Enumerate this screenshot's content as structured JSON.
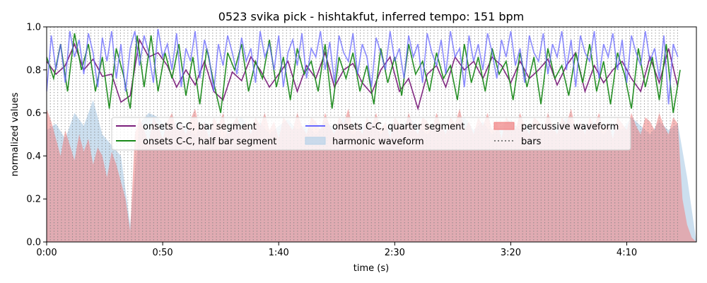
{
  "chart_data": {
    "type": "area",
    "title": "0523 svika pick - hishtakfut, inferred tempo: 151 bpm",
    "xlabel": "time (s)",
    "ylabel": "normalized values",
    "xlim": [
      0,
      280
    ],
    "ylim": [
      0,
      1.0
    ],
    "x_ticks": [
      0,
      50,
      100,
      150,
      200,
      250
    ],
    "x_tick_labels": [
      "0:00",
      "0:50",
      "1:40",
      "2:30",
      "3:20",
      "4:10"
    ],
    "y_ticks": [
      0,
      0.2,
      0.4,
      0.6,
      0.8,
      1.0
    ],
    "y_tick_labels": [
      "0.0",
      "0.2",
      "0.4",
      "0.6",
      "0.8",
      "1.0"
    ],
    "grid": false,
    "legend_position": "center",
    "tempo_bpm": 151,
    "bar_lines": {
      "start": 0,
      "end": 272,
      "interval_s": 1.59,
      "style": "dotted",
      "color": "#808080"
    },
    "colors": {
      "bar_segment": "#7b1f7b",
      "half_bar_segment": "#1a8a1a",
      "quarter_segment": "#6666ff",
      "harmonic_waveform": "#b7d2e8",
      "percussive_waveform": "#f08080",
      "bars": "#808080"
    },
    "series": [
      {
        "name": "onsets C-C, bar segment",
        "kind": "line",
        "color": "#7b1f7b",
        "x": [
          0,
          4,
          8,
          12,
          16,
          20,
          24,
          28,
          32,
          36,
          40,
          44,
          48,
          52,
          56,
          60,
          64,
          68,
          72,
          76,
          80,
          84,
          88,
          92,
          96,
          100,
          104,
          108,
          112,
          116,
          120,
          124,
          128,
          132,
          136,
          140,
          144,
          148,
          152,
          156,
          160,
          164,
          168,
          172,
          176,
          180,
          184,
          188,
          192,
          196,
          200,
          204,
          208,
          212,
          216,
          220,
          224,
          228,
          232,
          236,
          240,
          244,
          248,
          252,
          256,
          260,
          264,
          268,
          272
        ],
        "y": [
          0.84,
          0.78,
          0.82,
          0.92,
          0.8,
          0.85,
          0.77,
          0.78,
          0.65,
          0.68,
          0.94,
          0.86,
          0.88,
          0.82,
          0.72,
          0.8,
          0.73,
          0.84,
          0.7,
          0.66,
          0.79,
          0.75,
          0.86,
          0.8,
          0.72,
          0.78,
          0.84,
          0.7,
          0.82,
          0.76,
          0.88,
          0.72,
          0.8,
          0.83,
          0.74,
          0.69,
          0.8,
          0.86,
          0.7,
          0.76,
          0.62,
          0.78,
          0.82,
          0.72,
          0.86,
          0.8,
          0.84,
          0.76,
          0.86,
          0.82,
          0.74,
          0.84,
          0.76,
          0.8,
          0.85,
          0.73,
          0.82,
          0.88,
          0.7,
          0.82,
          0.74,
          0.8,
          0.84,
          0.76,
          0.7,
          0.86,
          0.74,
          0.9,
          0.72
        ]
      },
      {
        "name": "onsets C-C, half bar segment",
        "kind": "line",
        "color": "#1a8a1a",
        "x": [
          0,
          3,
          6,
          9,
          12,
          15,
          18,
          21,
          24,
          27,
          30,
          33,
          36,
          39,
          42,
          45,
          48,
          51,
          54,
          57,
          60,
          63,
          66,
          69,
          72,
          75,
          78,
          81,
          84,
          87,
          90,
          93,
          96,
          99,
          102,
          105,
          108,
          111,
          114,
          117,
          120,
          123,
          126,
          129,
          132,
          135,
          138,
          141,
          144,
          147,
          150,
          153,
          156,
          159,
          162,
          165,
          168,
          171,
          174,
          177,
          180,
          183,
          186,
          189,
          192,
          195,
          198,
          201,
          204,
          207,
          210,
          213,
          216,
          219,
          222,
          225,
          228,
          231,
          234,
          237,
          240,
          243,
          246,
          249,
          252,
          255,
          258,
          261,
          264,
          267,
          270,
          273
        ],
        "y": [
          0.86,
          0.76,
          0.92,
          0.7,
          0.97,
          0.8,
          0.92,
          0.7,
          0.86,
          0.62,
          0.9,
          0.78,
          0.62,
          0.96,
          0.72,
          0.96,
          0.7,
          0.88,
          0.76,
          0.92,
          0.68,
          0.86,
          0.64,
          0.9,
          0.74,
          0.6,
          0.88,
          0.8,
          0.92,
          0.7,
          0.84,
          0.76,
          0.94,
          0.72,
          0.86,
          0.66,
          0.9,
          0.78,
          0.84,
          0.7,
          0.92,
          0.62,
          0.86,
          0.76,
          0.88,
          0.7,
          0.82,
          0.64,
          0.9,
          0.74,
          0.86,
          0.68,
          0.92,
          0.78,
          0.84,
          0.7,
          0.88,
          0.76,
          0.82,
          0.66,
          0.92,
          0.74,
          0.86,
          0.7,
          0.9,
          0.78,
          0.84,
          0.66,
          0.88,
          0.72,
          0.86,
          0.64,
          0.9,
          0.76,
          0.82,
          0.68,
          0.88,
          0.74,
          0.92,
          0.7,
          0.84,
          0.64,
          0.88,
          0.78,
          0.62,
          0.9,
          0.72,
          0.86,
          0.66,
          0.92,
          0.6,
          0.8
        ]
      },
      {
        "name": "onsets C-C, quarter segment",
        "kind": "line",
        "color": "#6666ff",
        "x": [
          0,
          2,
          4,
          6,
          8,
          10,
          12,
          14,
          16,
          18,
          20,
          22,
          24,
          26,
          28,
          30,
          32,
          34,
          36,
          38,
          40,
          42,
          44,
          46,
          48,
          50,
          52,
          54,
          56,
          58,
          60,
          62,
          64,
          66,
          68,
          70,
          72,
          74,
          76,
          78,
          80,
          82,
          84,
          86,
          88,
          90,
          92,
          94,
          96,
          98,
          100,
          102,
          104,
          106,
          108,
          110,
          112,
          114,
          116,
          118,
          120,
          122,
          124,
          126,
          128,
          130,
          132,
          134,
          136,
          138,
          140,
          142,
          144,
          146,
          148,
          150,
          152,
          154,
          156,
          158,
          160,
          162,
          164,
          166,
          168,
          170,
          172,
          174,
          176,
          178,
          180,
          182,
          184,
          186,
          188,
          190,
          192,
          194,
          196,
          198,
          200,
          202,
          204,
          206,
          208,
          210,
          212,
          214,
          216,
          218,
          220,
          222,
          224,
          226,
          228,
          230,
          232,
          234,
          236,
          238,
          240,
          242,
          244,
          246,
          248,
          250,
          252,
          254,
          256,
          258,
          260,
          262,
          264,
          266,
          268,
          270,
          272
        ],
        "y": [
          0.7,
          0.96,
          0.8,
          0.92,
          0.74,
          0.98,
          0.86,
          0.94,
          0.78,
          0.97,
          0.88,
          0.72,
          0.95,
          0.84,
          0.98,
          0.76,
          0.92,
          0.7,
          0.9,
          0.98,
          0.82,
          0.96,
          0.88,
          0.74,
          0.99,
          0.86,
          0.92,
          0.8,
          0.97,
          0.72,
          0.9,
          0.84,
          0.98,
          0.76,
          0.94,
          0.86,
          0.7,
          0.92,
          0.82,
          0.96,
          0.88,
          0.78,
          0.95,
          0.84,
          0.9,
          0.74,
          0.98,
          0.86,
          0.92,
          0.8,
          0.96,
          0.72,
          0.88,
          0.94,
          0.82,
          0.97,
          0.76,
          0.9,
          0.86,
          0.98,
          0.8,
          0.93,
          0.74,
          0.96,
          0.88,
          0.84,
          0.97,
          0.78,
          0.92,
          0.86,
          0.72,
          0.95,
          0.88,
          0.8,
          0.98,
          0.84,
          0.9,
          0.76,
          0.96,
          0.86,
          0.92,
          0.74,
          0.97,
          0.88,
          0.82,
          0.94,
          0.78,
          0.98,
          0.86,
          0.9,
          0.72,
          0.96,
          0.84,
          0.92,
          0.8,
          0.97,
          0.88,
          0.76,
          0.94,
          0.86,
          0.98,
          0.82,
          0.9,
          0.74,
          0.96,
          0.88,
          0.84,
          0.97,
          0.78,
          0.92,
          0.86,
          0.98,
          0.8,
          0.94,
          0.72,
          0.96,
          0.88,
          0.84,
          0.98,
          0.76,
          0.92,
          0.86,
          0.97,
          0.8,
          0.94,
          0.74,
          0.96,
          0.88,
          0.82,
          0.98,
          0.84,
          0.9,
          0.76,
          0.96,
          0.64,
          0.92,
          0.86
        ]
      },
      {
        "name": "harmonic waveform",
        "kind": "area",
        "color": "#b7d2e8",
        "x": [
          0,
          4,
          8,
          12,
          16,
          20,
          24,
          28,
          32,
          36,
          40,
          44,
          48,
          52,
          56,
          60,
          64,
          68,
          72,
          76,
          80,
          84,
          88,
          92,
          96,
          100,
          104,
          108,
          112,
          116,
          120,
          124,
          128,
          132,
          136,
          140,
          144,
          148,
          152,
          156,
          160,
          164,
          168,
          172,
          176,
          180,
          184,
          188,
          192,
          196,
          200,
          204,
          208,
          212,
          216,
          220,
          224,
          228,
          232,
          236,
          240,
          244,
          248,
          252,
          256,
          260,
          264,
          268,
          272,
          276,
          280
        ],
        "y": [
          0.52,
          0.55,
          0.48,
          0.6,
          0.54,
          0.66,
          0.5,
          0.45,
          0.4,
          0.08,
          0.55,
          0.6,
          0.58,
          0.52,
          0.56,
          0.54,
          0.5,
          0.56,
          0.52,
          0.48,
          0.55,
          0.58,
          0.52,
          0.56,
          0.5,
          0.54,
          0.57,
          0.52,
          0.55,
          0.5,
          0.56,
          0.53,
          0.58,
          0.5,
          0.54,
          0.56,
          0.5,
          0.55,
          0.52,
          0.58,
          0.54,
          0.5,
          0.56,
          0.52,
          0.55,
          0.58,
          0.52,
          0.56,
          0.5,
          0.54,
          0.57,
          0.52,
          0.55,
          0.5,
          0.56,
          0.53,
          0.58,
          0.52,
          0.54,
          0.56,
          0.5,
          0.55,
          0.52,
          0.58,
          0.54,
          0.5,
          0.56,
          0.52,
          0.55,
          0.3,
          0.0
        ]
      },
      {
        "name": "percussive waveform",
        "kind": "area",
        "color": "#f08080",
        "x": [
          0,
          2,
          4,
          6,
          8,
          10,
          12,
          14,
          16,
          18,
          20,
          22,
          24,
          26,
          28,
          30,
          32,
          34,
          36,
          38,
          40,
          42,
          44,
          46,
          48,
          50,
          52,
          54,
          56,
          58,
          60,
          62,
          64,
          66,
          68,
          70,
          72,
          74,
          76,
          78,
          80,
          82,
          84,
          86,
          88,
          90,
          92,
          94,
          96,
          98,
          100,
          102,
          104,
          106,
          108,
          110,
          112,
          114,
          116,
          118,
          120,
          122,
          124,
          126,
          128,
          130,
          132,
          134,
          136,
          138,
          140,
          142,
          144,
          146,
          148,
          150,
          152,
          154,
          156,
          158,
          160,
          162,
          164,
          166,
          168,
          170,
          172,
          174,
          176,
          178,
          180,
          182,
          184,
          186,
          188,
          190,
          192,
          194,
          196,
          198,
          200,
          202,
          204,
          206,
          208,
          210,
          212,
          214,
          216,
          218,
          220,
          222,
          224,
          226,
          228,
          230,
          232,
          234,
          236,
          238,
          240,
          242,
          244,
          246,
          248,
          250,
          252,
          254,
          256,
          258,
          260,
          262,
          264,
          266,
          268,
          270,
          272,
          274,
          276,
          278,
          280
        ],
        "y": [
          0.62,
          0.56,
          0.48,
          0.4,
          0.52,
          0.45,
          0.38,
          0.5,
          0.42,
          0.48,
          0.36,
          0.44,
          0.4,
          0.3,
          0.42,
          0.36,
          0.28,
          0.2,
          0.05,
          0.5,
          0.58,
          0.52,
          0.46,
          0.58,
          0.54,
          0.48,
          0.56,
          0.6,
          0.52,
          0.55,
          0.5,
          0.57,
          0.62,
          0.52,
          0.56,
          0.48,
          0.58,
          0.54,
          0.6,
          0.5,
          0.55,
          0.58,
          0.52,
          0.56,
          0.5,
          0.58,
          0.54,
          0.6,
          0.52,
          0.56,
          0.48,
          0.58,
          0.55,
          0.52,
          0.6,
          0.54,
          0.5,
          0.58,
          0.56,
          0.52,
          0.6,
          0.54,
          0.5,
          0.58,
          0.55,
          0.62,
          0.52,
          0.56,
          0.5,
          0.58,
          0.54,
          0.6,
          0.52,
          0.56,
          0.48,
          0.58,
          0.55,
          0.52,
          0.6,
          0.54,
          0.5,
          0.58,
          0.56,
          0.52,
          0.6,
          0.54,
          0.5,
          0.58,
          0.55,
          0.62,
          0.52,
          0.56,
          0.5,
          0.58,
          0.54,
          0.6,
          0.52,
          0.56,
          0.48,
          0.58,
          0.55,
          0.52,
          0.6,
          0.54,
          0.5,
          0.58,
          0.56,
          0.52,
          0.6,
          0.54,
          0.5,
          0.58,
          0.55,
          0.62,
          0.52,
          0.56,
          0.5,
          0.58,
          0.54,
          0.6,
          0.52,
          0.56,
          0.48,
          0.58,
          0.55,
          0.52,
          0.6,
          0.54,
          0.5,
          0.58,
          0.56,
          0.52,
          0.6,
          0.54,
          0.5,
          0.58,
          0.55,
          0.2,
          0.08,
          0.02,
          0.0
        ]
      }
    ],
    "legend": [
      {
        "label": "onsets C-C, bar segment",
        "kind": "line",
        "color": "#7b1f7b"
      },
      {
        "label": "onsets C-C, half bar segment",
        "kind": "line",
        "color": "#1a8a1a"
      },
      {
        "label": "onsets C-C, quarter segment",
        "kind": "line",
        "color": "#6666ff"
      },
      {
        "label": "harmonic waveform",
        "kind": "patch",
        "color": "#b7d2e8"
      },
      {
        "label": "percussive waveform",
        "kind": "patch",
        "color": "#f08080"
      },
      {
        "label": "bars",
        "kind": "dotted",
        "color": "#808080"
      }
    ]
  }
}
